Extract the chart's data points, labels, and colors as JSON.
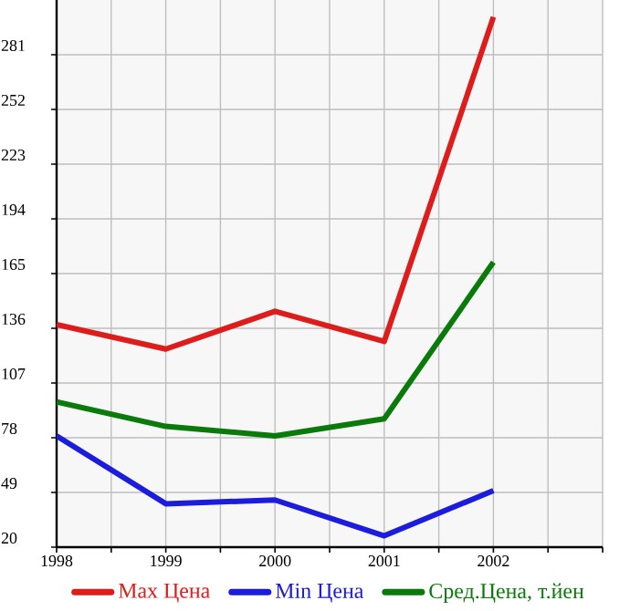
{
  "chart_data": {
    "type": "line",
    "x": [
      1998,
      1999,
      2000,
      2001,
      2002
    ],
    "series": [
      {
        "name": "Max Цена",
        "color": "#dd1c1c",
        "values": [
          138,
          125,
          145,
          129,
          301
        ]
      },
      {
        "name": "Min Цена",
        "color": "#1c1cdd",
        "values": [
          79,
          43,
          45,
          26,
          50
        ]
      },
      {
        "name": "Сред.Цена, т.йен",
        "color": "#0a7a0a",
        "values": [
          97,
          84,
          79,
          88,
          171
        ]
      }
    ],
    "xlim": [
      1998,
      2003
    ],
    "xticks": [
      1998,
      {
        "value": 1998.5,
        "label": null
      },
      1999,
      {
        "value": 1999.5,
        "label": null
      },
      2000,
      {
        "value": 2000.5,
        "label": null
      },
      2001,
      {
        "value": 2001.5,
        "label": null
      },
      2002,
      {
        "value": 2002.5,
        "label": null
      },
      {
        "value": 2003,
        "label": null
      }
    ],
    "ylim": [
      20,
      310
    ],
    "yticks": [
      20,
      49,
      78,
      107,
      136,
      165,
      194,
      223,
      252,
      281
    ],
    "grid": true,
    "legend": "bottom"
  }
}
